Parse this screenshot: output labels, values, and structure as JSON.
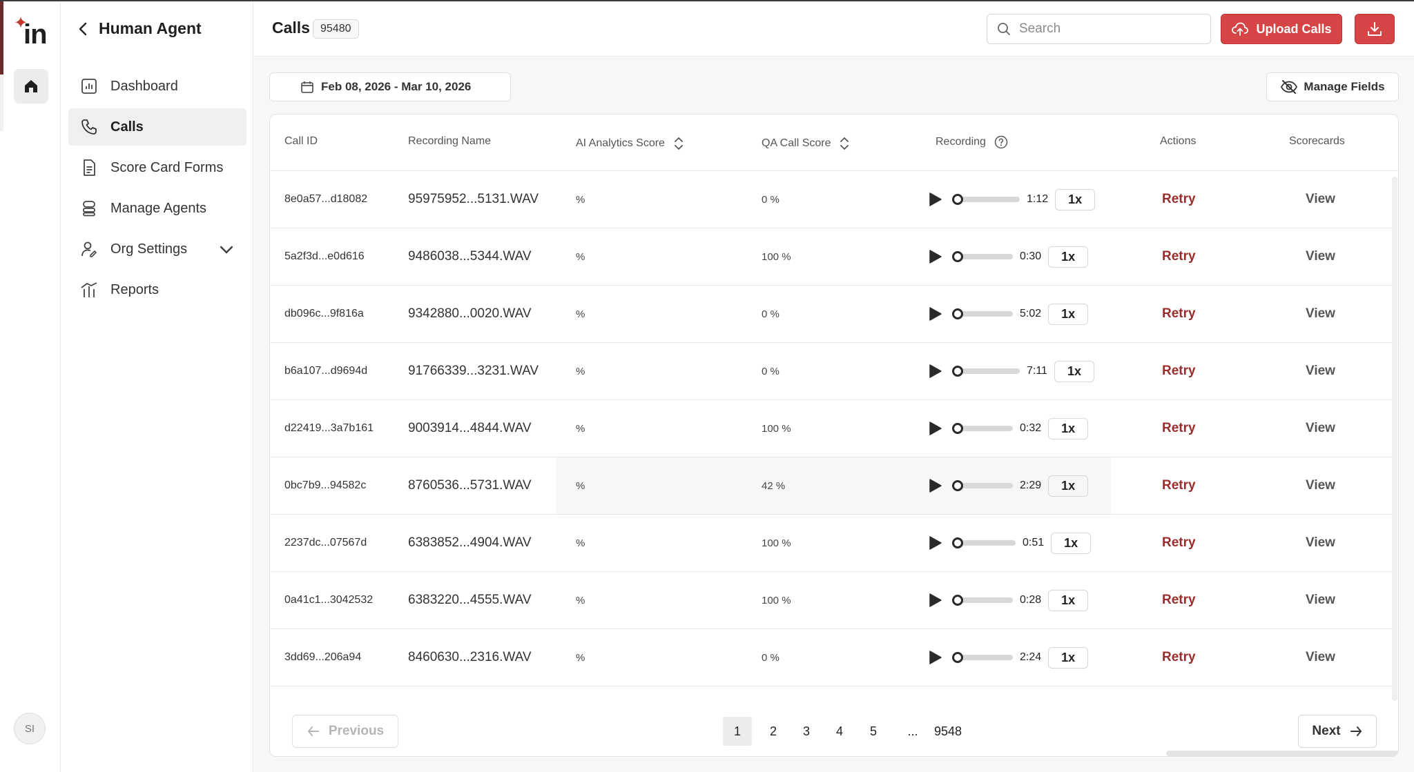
{
  "app": {
    "logo_text": "in",
    "avatar_initials": "SI"
  },
  "sidebar": {
    "back_title": "Human Agent",
    "items": [
      {
        "label": "Dashboard"
      },
      {
        "label": "Calls"
      },
      {
        "label": "Score Card Forms"
      },
      {
        "label": "Manage Agents"
      },
      {
        "label": "Org Settings"
      },
      {
        "label": "Reports"
      }
    ]
  },
  "header": {
    "title": "Calls",
    "count": "95480",
    "search_placeholder": "Search",
    "upload_label": "Upload Calls"
  },
  "toolbar": {
    "date_range": "Feb 08, 2026 - Mar 10, 2026",
    "manage_fields_label": "Manage Fields"
  },
  "table": {
    "columns": {
      "call_id": "Call ID",
      "recording_name": "Recording Name",
      "ai_score": "AI Analytics Score",
      "qa_score": "QA Call Score",
      "recording": "Recording",
      "actions": "Actions",
      "scorecards": "Scorecards"
    },
    "rows": [
      {
        "call_id": "8e0a57...d18082",
        "name": "95975952...5131.WAV",
        "ai": "%",
        "qa": "0 %",
        "duration": "1:12",
        "speed": "1x",
        "action": "Retry",
        "scorecard": "View"
      },
      {
        "call_id": "5a2f3d...e0d616",
        "name": "9486038...5344.WAV",
        "ai": "%",
        "qa": "100 %",
        "duration": "0:30",
        "speed": "1x",
        "action": "Retry",
        "scorecard": "View"
      },
      {
        "call_id": "db096c...9f816a",
        "name": "9342880...0020.WAV",
        "ai": "%",
        "qa": "0 %",
        "duration": "5:02",
        "speed": "1x",
        "action": "Retry",
        "scorecard": "View"
      },
      {
        "call_id": "b6a107...d9694d",
        "name": "91766339...3231.WAV",
        "ai": "%",
        "qa": "0 %",
        "duration": "7:11",
        "speed": "1x",
        "action": "Retry",
        "scorecard": "View"
      },
      {
        "call_id": "d22419...3a7b161",
        "name": "9003914...4844.WAV",
        "ai": "%",
        "qa": "100 %",
        "duration": "0:32",
        "speed": "1x",
        "action": "Retry",
        "scorecard": "View"
      },
      {
        "call_id": "0bc7b9...94582c",
        "name": "8760536...5731.WAV",
        "ai": "%",
        "qa": "42 %",
        "duration": "2:29",
        "speed": "1x",
        "action": "Retry",
        "scorecard": "View"
      },
      {
        "call_id": "2237dc...07567d",
        "name": "6383852...4904.WAV",
        "ai": "%",
        "qa": "100 %",
        "duration": "0:51",
        "speed": "1x",
        "action": "Retry",
        "scorecard": "View"
      },
      {
        "call_id": "0a41c1...3042532",
        "name": "6383220...4555.WAV",
        "ai": "%",
        "qa": "100 %",
        "duration": "0:28",
        "speed": "1x",
        "action": "Retry",
        "scorecard": "View"
      },
      {
        "call_id": "3dd69...206a94",
        "name": "8460630...2316.WAV",
        "ai": "%",
        "qa": "0 %",
        "duration": "2:24",
        "speed": "1x",
        "action": "Retry",
        "scorecard": "View"
      }
    ]
  },
  "pagination": {
    "previous_label": "Previous",
    "next_label": "Next",
    "pages": [
      "1",
      "2",
      "3",
      "4",
      "5",
      "...",
      "9548"
    ],
    "current": "1"
  },
  "colors": {
    "brand": "#d64545",
    "accent_text": "#9b2c2c",
    "rail_accent": "#6b2b2b"
  }
}
